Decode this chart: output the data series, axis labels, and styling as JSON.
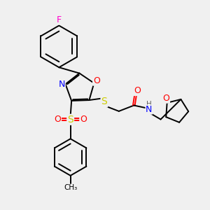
{
  "bg_color": "#f0f0f0",
  "bond_color": "#000000",
  "atom_colors": {
    "F": "#ff00cc",
    "O": "#ff0000",
    "N": "#0000ff",
    "S": "#cccc00",
    "H": "#606060",
    "C": "#000000"
  },
  "lw": 1.4,
  "lw_thick": 1.8,
  "xlim": [
    0,
    10
  ],
  "ylim": [
    0,
    10
  ]
}
